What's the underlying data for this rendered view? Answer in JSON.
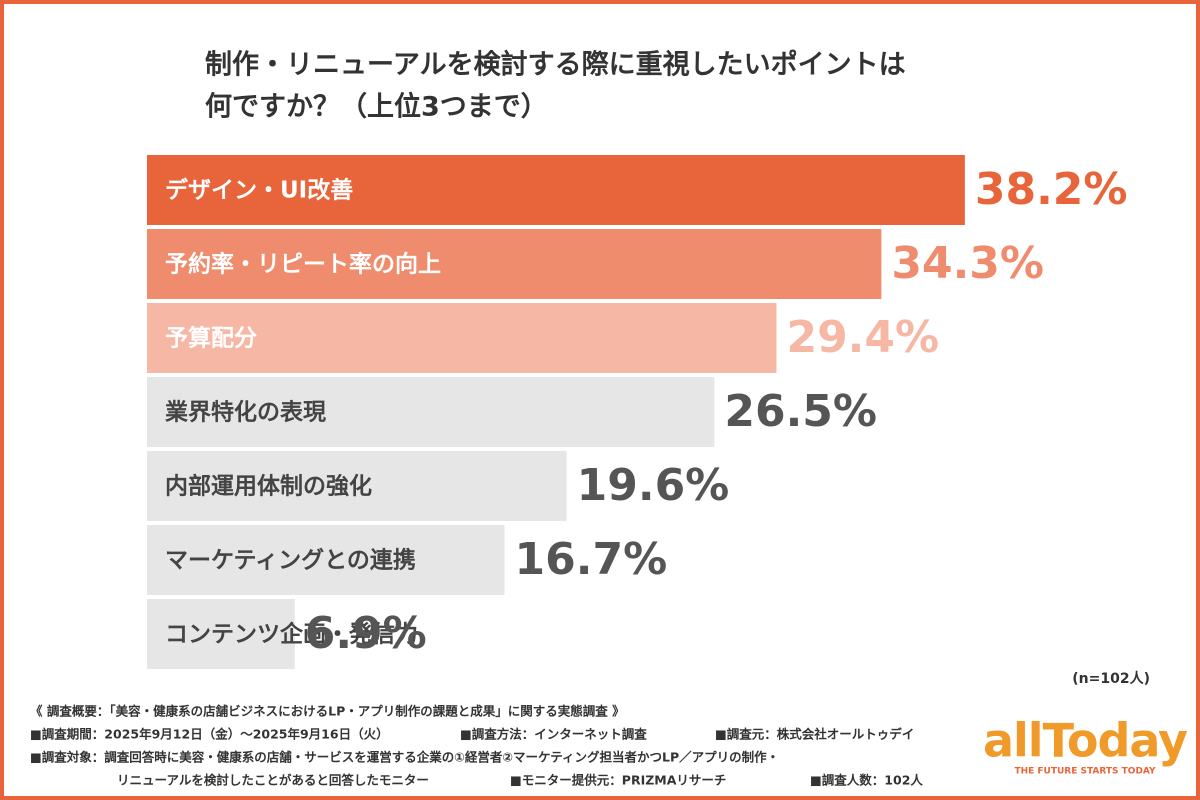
{
  "chart_data": {
    "type": "bar",
    "title": [
      "制作・リニューアルを検討する際に重視したいポイントは",
      "何ですか？（上位3つまで）"
    ],
    "categories": [
      "デザイン・UI改善",
      "予約率・リピート率の向上",
      "予算配分",
      "業界特化の表現",
      "内部運用体制の強化",
      "マーケティングとの連携",
      "コンテンツ企画・発信力"
    ],
    "values": [
      38.2,
      34.3,
      29.4,
      26.5,
      19.6,
      16.7,
      6.9
    ],
    "value_labels": [
      "38.2%",
      "34.3%",
      "29.4%",
      "26.5%",
      "19.6%",
      "16.7%",
      "6.9%"
    ],
    "colors": [
      "#e8643a",
      "#f08c6e",
      "#f6b8a5",
      "#e6e6e6",
      "#e6e6e6",
      "#e6e6e6",
      "#e6e6e6"
    ],
    "label_colors": [
      "#ffffff",
      "#ffffff",
      "#ffffff",
      "#444444",
      "#444444",
      "#444444",
      "#444444"
    ],
    "value_label_colors": [
      "#e8643a",
      "#f08c6e",
      "#f6b8a5",
      "#555555",
      "#555555",
      "#555555",
      "#555555"
    ]
  },
  "sample_size": "(n=102人)",
  "notes": [
    [
      "《 調査概要：「美容・健康系の店舗ビジネスにおけるLP・アプリ制作の課題と成果」に関する実態調査 》"
    ],
    [
      "■調査期間：2025年9月12日（金）～2025年9月16日（火）",
      "■調査方法：インターネット調査",
      "■調査元：株式会社オールトゥデイ"
    ],
    [
      "■調査対象：調査回答時に美容・健康系の店舗・サービスを運営する企業の①経営者②マーケティング担当者かつLP／アプリの制作・"
    ],
    [
      "リニューアルを検討したことがあると回答したモニター",
      "■モニター提供元：PRIZMAリサーチ",
      "■調査人数：102人"
    ]
  ],
  "logo": {
    "name": "allToday",
    "tagline": "THE FUTURE STARTS TODAY"
  }
}
